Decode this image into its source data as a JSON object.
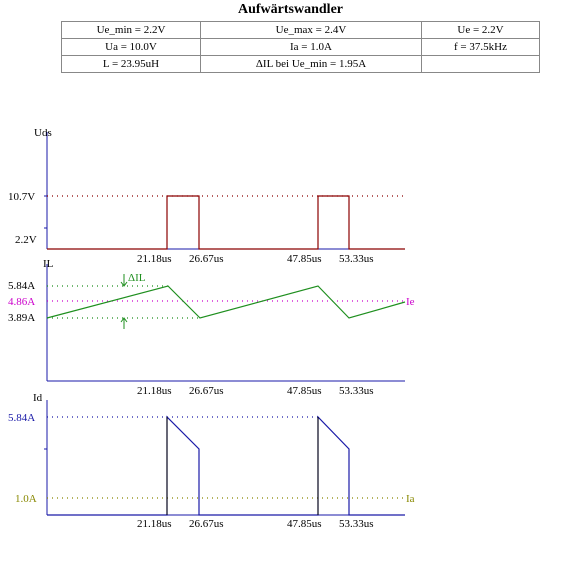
{
  "title": "Aufwärtswandler",
  "table": {
    "rows": [
      [
        "Ue_min = 2.2V",
        "Ue_max = 2.4V",
        "Ue = 2.2V"
      ],
      [
        "Ua = 10.0V",
        "Ia = 1.0A",
        "f = 37.5kHz"
      ],
      [
        "L = 23.95uH",
        "ΔIL bei Ue_min = 1.95A",
        ""
      ]
    ]
  },
  "colors": {
    "uds": "#8b0000",
    "il": "#1f8f1f",
    "ie": "#cc00cc",
    "id": "#1a1aa8",
    "ia": "#888800",
    "axis": "#1a1aa8"
  },
  "chart_data": [
    {
      "type": "line",
      "ylabel": "Uds",
      "x_ticks": [
        "21.18us",
        "26.67us",
        "47.85us",
        "53.33us"
      ],
      "y_ticks": [
        "10.7V",
        "2.2V"
      ],
      "series": [
        {
          "x": [
            0,
            21.18,
            21.18,
            26.67,
            26.67,
            47.85,
            47.85,
            53.33,
            53.33,
            64
          ],
          "y": [
            0,
            0,
            10.7,
            10.7,
            0,
            0,
            10.7,
            10.7,
            0,
            0
          ]
        }
      ]
    },
    {
      "type": "line",
      "ylabel": "IL",
      "x_ticks": [
        "21.18us",
        "26.67us",
        "47.85us",
        "53.33us"
      ],
      "y_ticks": [
        "5.84A",
        "4.86A",
        "3.89A"
      ],
      "annotations": [
        "ΔIL",
        "Ie"
      ],
      "series": [
        {
          "x": [
            0,
            21.18,
            26.67,
            47.85,
            53.33,
            64
          ],
          "y": [
            3.89,
            5.84,
            3.89,
            5.84,
            3.89,
            4.86
          ]
        }
      ]
    },
    {
      "type": "line",
      "ylabel": "Id",
      "x_ticks": [
        "21.18us",
        "26.67us",
        "47.85us",
        "53.33us"
      ],
      "y_ticks": [
        "5.84A",
        "1.0A"
      ],
      "annotations": [
        "Ia"
      ],
      "series": [
        {
          "x": [
            0,
            21.18,
            21.18,
            26.67,
            26.67,
            47.85,
            47.85,
            53.33,
            53.33,
            64
          ],
          "y": [
            0,
            0,
            5.84,
            3.89,
            0,
            0,
            5.84,
            3.89,
            0,
            0
          ]
        }
      ]
    }
  ]
}
